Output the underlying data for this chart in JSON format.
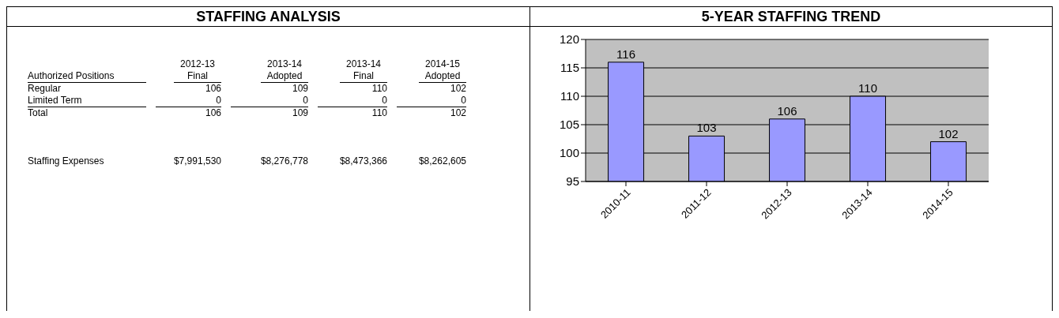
{
  "chart_data": [
    {
      "type": "other",
      "title": "STAFFING ANALYSIS",
      "annotations": [
        "Authorized Positions",
        "2012-13 Final",
        "2013-14 Adopted",
        "2013-14 Final",
        "2014-15 Adopted",
        "Regular",
        "106",
        "109",
        "110",
        "102",
        "Limited Term",
        "0",
        "0",
        "0",
        "0",
        "Total",
        "106",
        "109",
        "110",
        "102",
        "Staffing Expenses",
        "$7,991,530",
        "$8,276,778",
        "$8,473,366",
        "$8,262,605"
      ]
    },
    {
      "type": "bar",
      "title": "5-YEAR STAFFING TREND",
      "categories": [
        "2010-11",
        "2011-12",
        "2012-13",
        "2013-14",
        "2014-15"
      ],
      "values": [
        116,
        103,
        106,
        110,
        102
      ],
      "color": "#9999ff",
      "ylim": [
        95,
        120
      ],
      "yticks": [
        95,
        100,
        105,
        110,
        115,
        120
      ],
      "grid": "y",
      "data_labels": true
    }
  ]
}
